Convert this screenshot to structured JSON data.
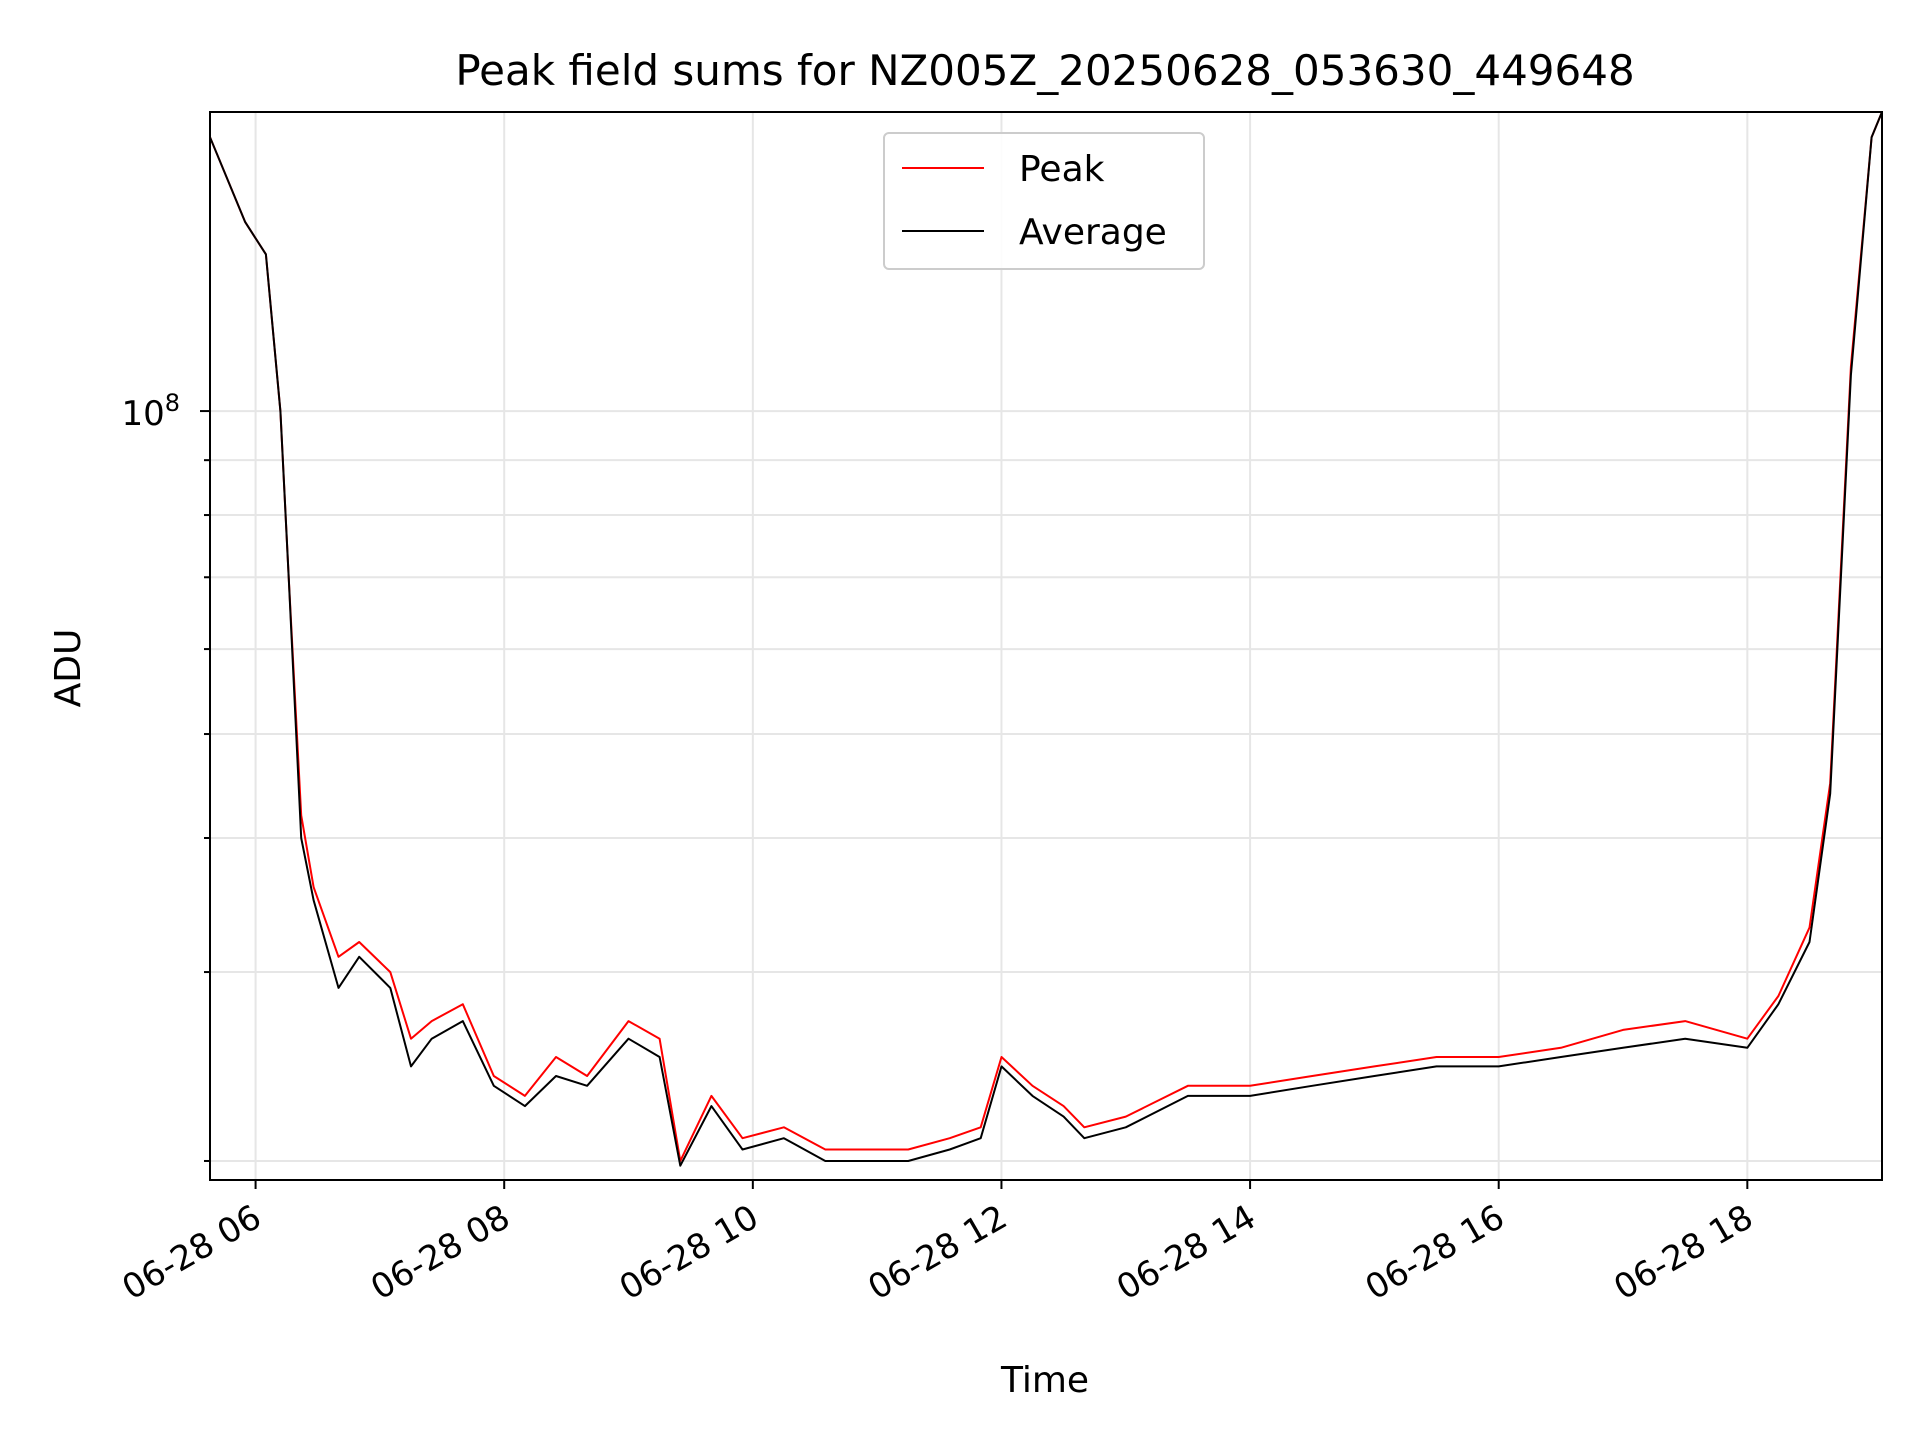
{
  "chart_data": {
    "type": "line",
    "title": "Peak field sums for NZ005Z_20250628_053630_449648",
    "xlabel": "Time",
    "ylabel": "ADU",
    "y_scale": "log",
    "grid": true,
    "legend_position": "top-center",
    "x_tick_labels": [
      "06-28 06",
      "06-28 08",
      "06-28 10",
      "06-28 12",
      "06-28 14",
      "06-28 16",
      "06-28 18"
    ],
    "x_ticks": [
      "2025-06-28 06:00",
      "2025-06-28 08:00",
      "2025-06-28 10:00",
      "2025-06-28 12:00",
      "2025-06-28 14:00",
      "2025-06-28 16:00",
      "2025-06-28 18:00"
    ],
    "y_major_ticks": [
      {
        "value": 100000000,
        "base": "10",
        "exponent": "8"
      }
    ],
    "y_minor_ticks": [
      20000000,
      30000000,
      40000000,
      50000000,
      60000000,
      70000000,
      80000000,
      90000000,
      200000000
    ],
    "xlim": [
      "2025-06-28 05:38",
      "2025-06-28 19:05"
    ],
    "ylim": [
      19200000,
      190000000
    ],
    "x": [
      "2025-06-28 05:38",
      "2025-06-28 05:55",
      "2025-06-28 06:05",
      "2025-06-28 06:12",
      "2025-06-28 06:16",
      "2025-06-28 06:22",
      "2025-06-28 06:28",
      "2025-06-28 06:40",
      "2025-06-28 06:50",
      "2025-06-28 07:05",
      "2025-06-28 07:15",
      "2025-06-28 07:25",
      "2025-06-28 07:40",
      "2025-06-28 07:55",
      "2025-06-28 08:10",
      "2025-06-28 08:25",
      "2025-06-28 08:40",
      "2025-06-28 09:00",
      "2025-06-28 09:15",
      "2025-06-28 09:25",
      "2025-06-28 09:40",
      "2025-06-28 09:55",
      "2025-06-28 10:15",
      "2025-06-28 10:35",
      "2025-06-28 10:55",
      "2025-06-28 11:15",
      "2025-06-28 11:35",
      "2025-06-28 11:50",
      "2025-06-28 12:00",
      "2025-06-28 12:15",
      "2025-06-28 12:30",
      "2025-06-28 12:40",
      "2025-06-28 13:00",
      "2025-06-28 13:30",
      "2025-06-28 14:00",
      "2025-06-28 14:30",
      "2025-06-28 15:00",
      "2025-06-28 15:30",
      "2025-06-28 16:00",
      "2025-06-28 16:30",
      "2025-06-28 17:00",
      "2025-06-28 17:30",
      "2025-06-28 18:00",
      "2025-06-28 18:15",
      "2025-06-28 18:30",
      "2025-06-28 18:40",
      "2025-06-28 18:50",
      "2025-06-28 19:00",
      "2025-06-28 19:05"
    ],
    "series": [
      {
        "name": "Peak",
        "color": "#ff0000",
        "values": [
          180000000,
          150000000,
          140000000,
          100000000,
          70000000,
          42000000,
          36000000,
          31000000,
          32000000,
          30000000,
          26000000,
          27000000,
          28000000,
          24000000,
          23000000,
          25000000,
          24000000,
          27000000,
          26000000,
          20000000,
          23000000,
          21000000,
          21500000,
          20500000,
          20500000,
          20500000,
          21000000,
          21500000,
          25000000,
          23500000,
          22500000,
          21500000,
          22000000,
          23500000,
          23500000,
          24000000,
          24500000,
          25000000,
          25000000,
          25500000,
          26500000,
          27000000,
          26000000,
          28500000,
          33000000,
          45000000,
          110000000,
          180000000,
          190000000
        ]
      },
      {
        "name": "Average",
        "color": "#000000",
        "values": [
          180000000,
          150000000,
          140000000,
          100000000,
          70000000,
          40000000,
          35000000,
          29000000,
          31000000,
          29000000,
          24500000,
          26000000,
          27000000,
          23500000,
          22500000,
          24000000,
          23500000,
          26000000,
          25000000,
          19800000,
          22500000,
          20500000,
          21000000,
          20000000,
          20000000,
          20000000,
          20500000,
          21000000,
          24500000,
          23000000,
          22000000,
          21000000,
          21500000,
          23000000,
          23000000,
          23500000,
          24000000,
          24500000,
          24500000,
          25000000,
          25500000,
          26000000,
          25500000,
          28000000,
          32000000,
          44000000,
          108000000,
          180000000,
          190000000
        ]
      }
    ]
  }
}
